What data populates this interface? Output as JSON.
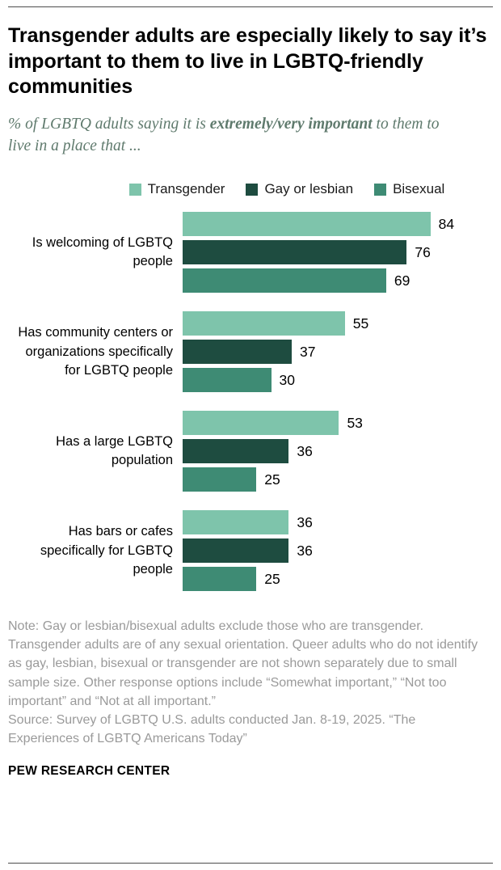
{
  "page": {
    "title": "Transgender adults are especially likely to say it’s important to them to live in LGBTQ-friendly communities",
    "subtitle_prefix": "% of LGBTQ adults saying it is ",
    "subtitle_bold": "extremely/very important",
    "subtitle_suffix": " to them to live in a place that ...",
    "note": "Note: Gay or lesbian/bisexual adults exclude those who are transgender. Transgender adults are of any sexual orientation. Queer adults who do not identify as gay, lesbian, bisexual or transgender are not shown separately due to small sample size. Other response options include “Somewhat important,” “Not too important” and “Not at all important.”",
    "source": "Source: Survey of LGBTQ U.S. adults conducted Jan. 8-19, 2025. “The Experiences of LGBTQ Americans Today”",
    "footer": "PEW RESEARCH CENTER"
  },
  "chart_data": {
    "type": "bar",
    "orientation": "horizontal",
    "title": "Transgender adults are especially likely to say it’s important to them to live in LGBTQ-friendly communities",
    "subtitle": "% of LGBTQ adults saying it is extremely/very important to them to live in a place that ...",
    "categories": [
      "Is welcoming of LGBTQ people",
      "Has community centers or organizations specifically for LGBTQ people",
      "Has a large LGBTQ population",
      "Has bars or cafes specifically for LGBTQ people"
    ],
    "series": [
      {
        "name": "Transgender",
        "color": "#7ec4ab",
        "values": [
          84,
          55,
          53,
          36
        ]
      },
      {
        "name": "Gay or lesbian",
        "color": "#1e4c40",
        "values": [
          76,
          37,
          36,
          36
        ]
      },
      {
        "name": "Bisexual",
        "color": "#3e8b74",
        "values": [
          69,
          30,
          25,
          25
        ]
      }
    ],
    "xlim": [
      0,
      100
    ],
    "value_labels": true,
    "legend_position": "top",
    "grid": false
  }
}
